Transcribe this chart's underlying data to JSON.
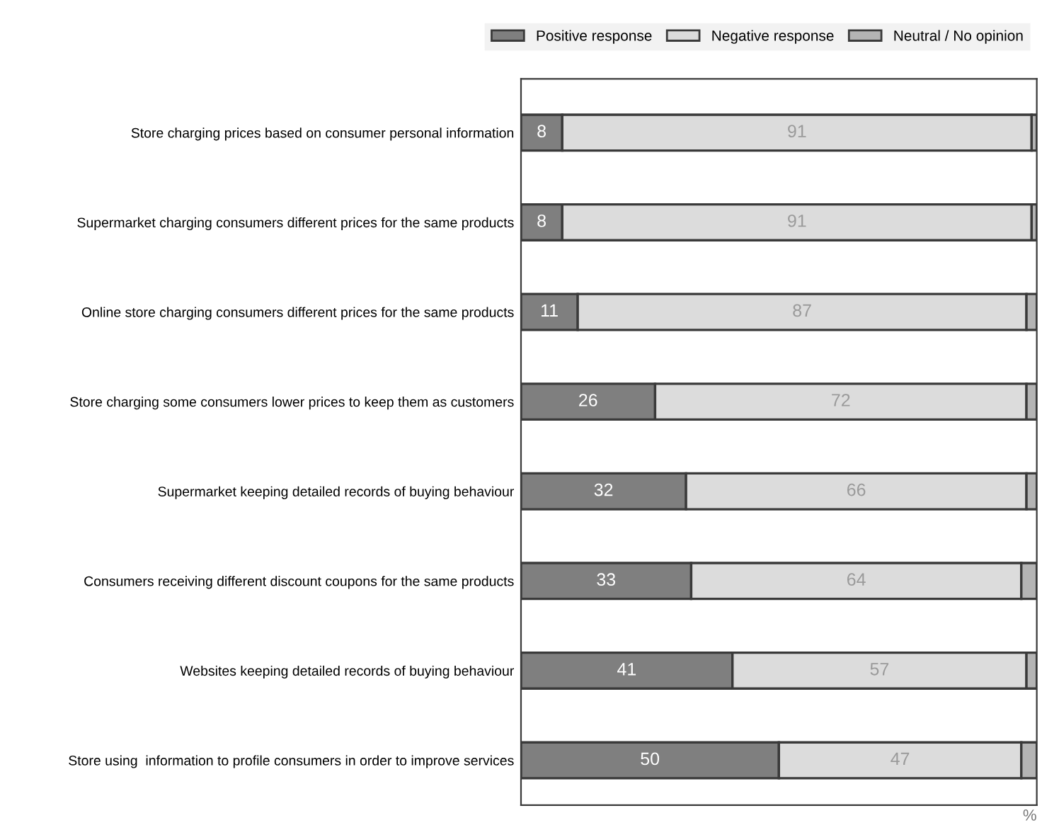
{
  "chart_data": {
    "type": "bar",
    "orientation": "horizontal",
    "stacked": true,
    "categories": [
      "Store charging prices based on consumer personal information",
      "Supermarket charging consumers different prices for the same products",
      "Online store charging consumers different prices for the same products",
      "Store charging some consumers lower prices to keep them as customers",
      "Supermarket keeping detailed records of buying behaviour",
      "Consumers receiving different discount coupons for the same products",
      "Websites keeping detailed records of buying behaviour",
      "Store using  information to profile consumers in order to improve services"
    ],
    "series": [
      {
        "name": "Positive response",
        "color": "#7f7f7f",
        "values": [
          8,
          8,
          11,
          26,
          32,
          33,
          41,
          50
        ],
        "value_labels": [
          "8",
          "8",
          "11",
          "26",
          "32",
          "33",
          "41",
          "50"
        ]
      },
      {
        "name": "Negative response",
        "color": "#dcdcdc",
        "values": [
          91,
          91,
          87,
          72,
          66,
          64,
          57,
          47
        ],
        "value_labels": [
          "91",
          "91",
          "87",
          "72",
          "66",
          "64",
          "57",
          "47"
        ]
      },
      {
        "name": "Neutral / No opinion",
        "color": "#b4b4b4",
        "values": [
          1,
          1,
          2,
          2,
          2,
          3,
          2,
          3
        ]
      }
    ],
    "xlim": [
      0,
      100
    ],
    "xlabel": "%",
    "tick_labels": "y",
    "legend": "top",
    "grid": false
  }
}
